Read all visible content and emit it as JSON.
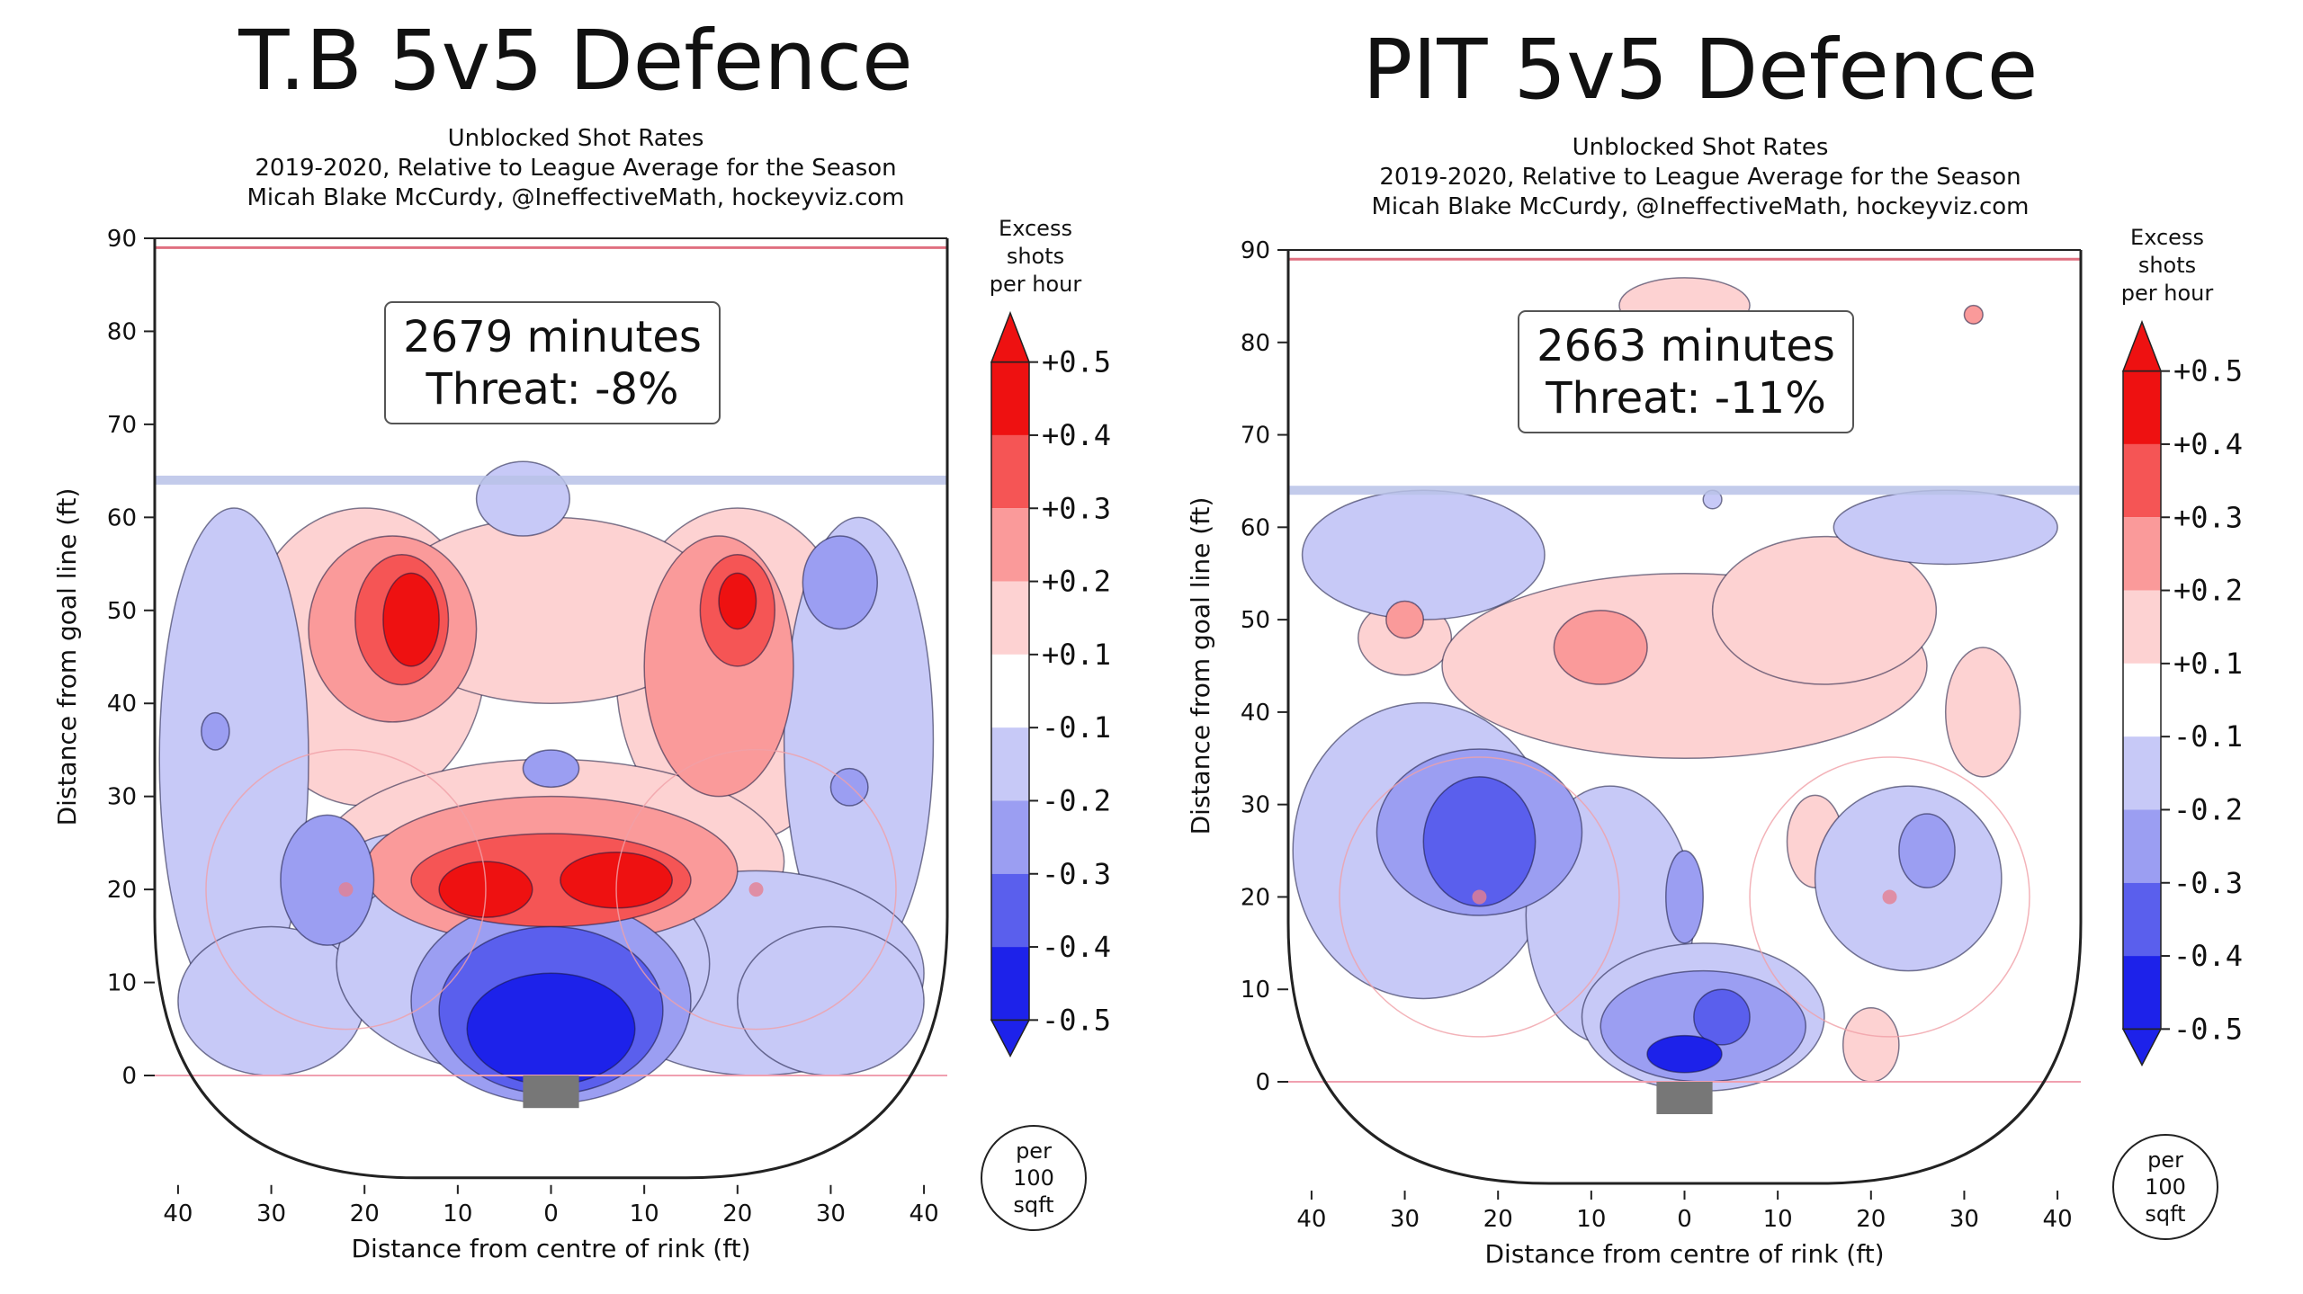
{
  "colors": {
    "red_strong": "#ee1111",
    "red_mid": "#f55555",
    "red_light": "#fa9a9a",
    "red_pale": "#fdd2d2",
    "blue_pale": "#c7c9f7",
    "blue_light": "#9b9ef2",
    "blue_mid": "#5a5fed",
    "blue_strong": "#1d22ea",
    "line_blue": "#b8c2e8",
    "rink_line": "#222222",
    "faceoff": "#f0a0a8",
    "net": "#777777"
  },
  "chart_data": [
    {
      "type": "heatmap",
      "team": "T.B",
      "title": "T.B 5v5 Defence",
      "subtitle_lines": [
        "Unblocked Shot Rates",
        "2019-2020, Relative to League Average for the Season",
        "Micah Blake McCurdy, @IneffectiveMath, hockeyviz.com"
      ],
      "minutes_label": "2679 minutes",
      "threat_label": "Threat: -8%",
      "xlabel": "Distance from centre of rink (ft)",
      "ylabel": "Distance from goal line (ft)",
      "x_ticks": [
        "40",
        "30",
        "20",
        "10",
        "0",
        "10",
        "20",
        "30",
        "40"
      ],
      "y_ticks": [
        "0",
        "10",
        "20",
        "30",
        "40",
        "50",
        "60",
        "70",
        "80",
        "90"
      ],
      "xlim": [
        -42.5,
        42.5
      ],
      "ylim": [
        -11,
        90
      ],
      "colorbar": {
        "title": [
          "Excess",
          "shots",
          "per hour"
        ],
        "tick_labels": [
          "+0.5",
          "+0.4",
          "+0.3",
          "+0.2",
          "+0.1",
          "-0.1",
          "-0.2",
          "-0.3",
          "-0.4",
          "-0.5"
        ],
        "unit_label": [
          "per",
          "100",
          "sqft"
        ]
      },
      "regions": [
        {
          "level": -0.2,
          "cx": -34,
          "cy": 34,
          "rx": 8,
          "ry": 27
        },
        {
          "level": -0.2,
          "cx": 33,
          "cy": 36,
          "rx": 8,
          "ry": 24
        },
        {
          "level": -0.2,
          "cx": -16,
          "cy": 16,
          "rx": 10,
          "ry": 10
        },
        {
          "level": -0.2,
          "cx": 22,
          "cy": 11,
          "rx": 18,
          "ry": 11
        },
        {
          "level": -0.2,
          "cx": -30,
          "cy": 8,
          "rx": 10,
          "ry": 8
        },
        {
          "level": -0.2,
          "cx": 30,
          "cy": 8,
          "rx": 10,
          "ry": 8
        },
        {
          "level": -0.2,
          "cx": -3,
          "cy": 12,
          "rx": 20,
          "ry": 12
        },
        {
          "level": -0.2,
          "cx": -3,
          "cy": 62,
          "rx": 5,
          "ry": 4
        },
        {
          "level": -0.3,
          "cx": 31,
          "cy": 53,
          "rx": 4,
          "ry": 5
        },
        {
          "level": -0.3,
          "cx": -24,
          "cy": 21,
          "rx": 5,
          "ry": 7
        },
        {
          "level": -0.3,
          "cx": 0,
          "cy": 33,
          "rx": 3,
          "ry": 2
        },
        {
          "level": -0.3,
          "cx": -36,
          "cy": 37,
          "rx": 1.5,
          "ry": 2
        },
        {
          "level": -0.3,
          "cx": 32,
          "cy": 31,
          "rx": 2,
          "ry": 2
        },
        {
          "level": -0.3,
          "cx": 0,
          "cy": 8,
          "rx": 15,
          "ry": 11
        },
        {
          "level": -0.4,
          "cx": 0,
          "cy": 7,
          "rx": 12,
          "ry": 9
        },
        {
          "level": -0.5,
          "cx": 0,
          "cy": 5,
          "rx": 9,
          "ry": 6
        },
        {
          "level": 0.1,
          "cx": -20,
          "cy": 45,
          "rx": 13,
          "ry": 16
        },
        {
          "level": 0.1,
          "cx": 20,
          "cy": 43,
          "rx": 13,
          "ry": 18
        },
        {
          "level": 0.1,
          "cx": 0,
          "cy": 50,
          "rx": 18,
          "ry": 10
        },
        {
          "level": 0.1,
          "cx": 0,
          "cy": 23,
          "rx": 25,
          "ry": 11
        },
        {
          "level": 0.2,
          "cx": -17,
          "cy": 48,
          "rx": 9,
          "ry": 10
        },
        {
          "level": 0.2,
          "cx": 18,
          "cy": 44,
          "rx": 8,
          "ry": 14
        },
        {
          "level": 0.2,
          "cx": 0,
          "cy": 22,
          "rx": 20,
          "ry": 8
        },
        {
          "level": 0.3,
          "cx": -16,
          "cy": 49,
          "rx": 5,
          "ry": 7
        },
        {
          "level": 0.3,
          "cx": 20,
          "cy": 50,
          "rx": 4,
          "ry": 6
        },
        {
          "level": 0.3,
          "cx": 0,
          "cy": 21,
          "rx": 15,
          "ry": 5
        },
        {
          "level": 0.4,
          "cx": -15,
          "cy": 49,
          "rx": 3,
          "ry": 5
        },
        {
          "level": 0.4,
          "cx": 20,
          "cy": 51,
          "rx": 2,
          "ry": 3
        },
        {
          "level": 0.4,
          "cx": -7,
          "cy": 20,
          "rx": 5,
          "ry": 3
        },
        {
          "level": 0.4,
          "cx": 7,
          "cy": 21,
          "rx": 6,
          "ry": 3
        }
      ]
    },
    {
      "type": "heatmap",
      "team": "PIT",
      "title": "PIT 5v5 Defence",
      "subtitle_lines": [
        "Unblocked Shot Rates",
        "2019-2020, Relative to League Average for the Season",
        "Micah Blake McCurdy, @IneffectiveMath, hockeyviz.com"
      ],
      "minutes_label": "2663 minutes",
      "threat_label": "Threat: -11%",
      "xlabel": "Distance from centre of rink (ft)",
      "ylabel": "Distance from goal line (ft)",
      "x_ticks": [
        "40",
        "30",
        "20",
        "10",
        "0",
        "10",
        "20",
        "30",
        "40"
      ],
      "y_ticks": [
        "0",
        "10",
        "20",
        "30",
        "40",
        "50",
        "60",
        "70",
        "80",
        "90"
      ],
      "xlim": [
        -42.5,
        42.5
      ],
      "ylim": [
        -11,
        90
      ],
      "colorbar": {
        "title": [
          "Excess",
          "shots",
          "per hour"
        ],
        "tick_labels": [
          "+0.5",
          "+0.4",
          "+0.3",
          "+0.2",
          "+0.1",
          "-0.1",
          "-0.2",
          "-0.3",
          "-0.4",
          "-0.5"
        ],
        "unit_label": [
          "per",
          "100",
          "sqft"
        ]
      },
      "regions": [
        {
          "level": -0.2,
          "cx": -28,
          "cy": 57,
          "rx": 13,
          "ry": 7
        },
        {
          "level": -0.2,
          "cx": 28,
          "cy": 60,
          "rx": 12,
          "ry": 4
        },
        {
          "level": -0.2,
          "cx": -28,
          "cy": 25,
          "rx": 14,
          "ry": 16
        },
        {
          "level": -0.2,
          "cx": -8,
          "cy": 18,
          "rx": 9,
          "ry": 14
        },
        {
          "level": -0.2,
          "cx": 2,
          "cy": 7,
          "rx": 13,
          "ry": 8
        },
        {
          "level": -0.2,
          "cx": 24,
          "cy": 22,
          "rx": 10,
          "ry": 10
        },
        {
          "level": -0.2,
          "cx": 3,
          "cy": 63,
          "rx": 1,
          "ry": 1
        },
        {
          "level": -0.3,
          "cx": -22,
          "cy": 27,
          "rx": 11,
          "ry": 9
        },
        {
          "level": -0.3,
          "cx": 0,
          "cy": 20,
          "rx": 2,
          "ry": 5
        },
        {
          "level": -0.3,
          "cx": 2,
          "cy": 6,
          "rx": 11,
          "ry": 6
        },
        {
          "level": -0.3,
          "cx": 26,
          "cy": 25,
          "rx": 3,
          "ry": 4
        },
        {
          "level": -0.4,
          "cx": -22,
          "cy": 26,
          "rx": 6,
          "ry": 7
        },
        {
          "level": -0.4,
          "cx": 4,
          "cy": 7,
          "rx": 3,
          "ry": 3
        },
        {
          "level": -0.5,
          "cx": 0,
          "cy": 3,
          "rx": 4,
          "ry": 2
        },
        {
          "level": 0.1,
          "cx": -30,
          "cy": 48,
          "rx": 5,
          "ry": 4
        },
        {
          "level": 0.1,
          "cx": 0,
          "cy": 45,
          "rx": 26,
          "ry": 10
        },
        {
          "level": 0.1,
          "cx": 15,
          "cy": 51,
          "rx": 12,
          "ry": 8
        },
        {
          "level": 0.1,
          "cx": 32,
          "cy": 40,
          "rx": 4,
          "ry": 7
        },
        {
          "level": 0.1,
          "cx": 14,
          "cy": 26,
          "rx": 3,
          "ry": 5
        },
        {
          "level": 0.1,
          "cx": 20,
          "cy": 4,
          "rx": 3,
          "ry": 4
        },
        {
          "level": 0.1,
          "cx": 0,
          "cy": 84,
          "rx": 7,
          "ry": 3
        },
        {
          "level": 0.2,
          "cx": -9,
          "cy": 47,
          "rx": 5,
          "ry": 4
        },
        {
          "level": 0.2,
          "cx": -30,
          "cy": 50,
          "rx": 2,
          "ry": 2
        },
        {
          "level": 0.2,
          "cx": 31,
          "cy": 83,
          "rx": 1,
          "ry": 1
        }
      ]
    }
  ]
}
